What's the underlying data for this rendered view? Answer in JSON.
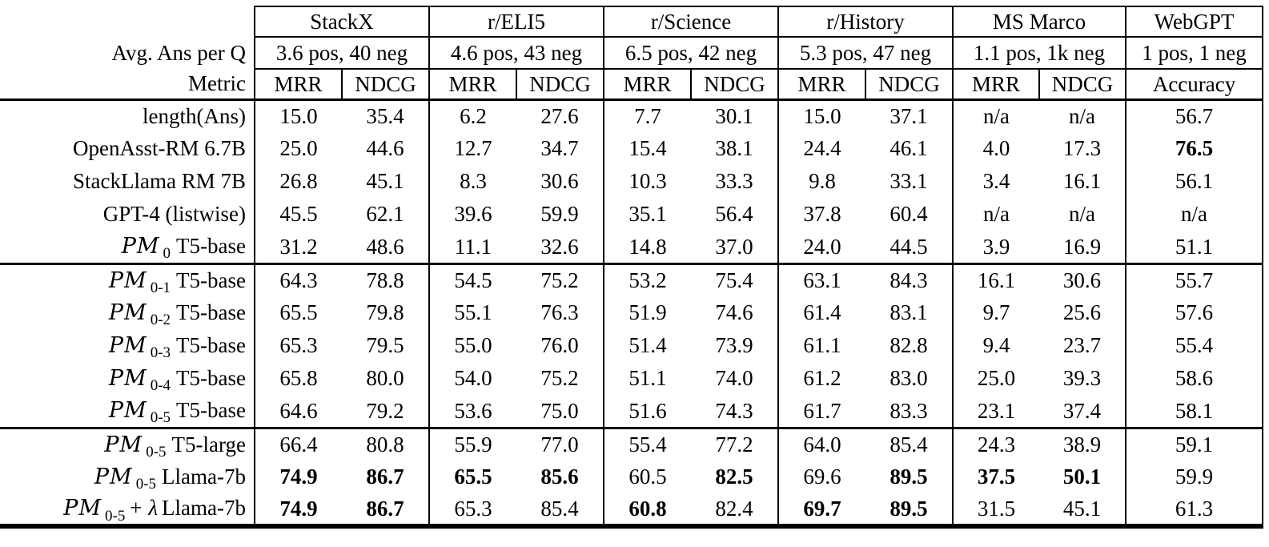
{
  "table": {
    "row_headers": {
      "avg": "Avg. Ans per Q",
      "metric": "Metric"
    },
    "groups": [
      {
        "name": "StackX",
        "avg": "3.6 pos, 40 neg",
        "metrics": [
          "MRR",
          "NDCG"
        ]
      },
      {
        "name": "r/ELI5",
        "avg": "4.6 pos, 43 neg",
        "metrics": [
          "MRR",
          "NDCG"
        ]
      },
      {
        "name": "r/Science",
        "avg": "6.5 pos, 42 neg",
        "metrics": [
          "MRR",
          "NDCG"
        ]
      },
      {
        "name": "r/History",
        "avg": "5.3 pos, 47 neg",
        "metrics": [
          "MRR",
          "NDCG"
        ]
      },
      {
        "name": "MS Marco",
        "avg": "1.1 pos, 1k neg",
        "metrics": [
          "MRR",
          "NDCG"
        ]
      },
      {
        "name": "WebGPT",
        "avg": "1 pos, 1 neg",
        "metrics": [
          "Accuracy"
        ]
      }
    ],
    "sections": [
      {
        "rows": [
          {
            "label": {
              "script": "",
              "sub": "",
              "mid": "",
              "rest": "length(Ans)"
            },
            "cells": [
              {
                "v": "15.0",
                "b": false
              },
              {
                "v": "35.4",
                "b": false
              },
              {
                "v": "6.2",
                "b": false
              },
              {
                "v": "27.6",
                "b": false
              },
              {
                "v": "7.7",
                "b": false
              },
              {
                "v": "30.1",
                "b": false
              },
              {
                "v": "15.0",
                "b": false
              },
              {
                "v": "37.1",
                "b": false
              },
              {
                "v": "n/a",
                "b": false
              },
              {
                "v": "n/a",
                "b": false
              },
              {
                "v": "56.7",
                "b": false
              }
            ]
          },
          {
            "label": {
              "script": "",
              "sub": "",
              "mid": "",
              "rest": "OpenAsst-RM 6.7B"
            },
            "cells": [
              {
                "v": "25.0",
                "b": false
              },
              {
                "v": "44.6",
                "b": false
              },
              {
                "v": "12.7",
                "b": false
              },
              {
                "v": "34.7",
                "b": false
              },
              {
                "v": "15.4",
                "b": false
              },
              {
                "v": "38.1",
                "b": false
              },
              {
                "v": "24.4",
                "b": false
              },
              {
                "v": "46.1",
                "b": false
              },
              {
                "v": "4.0",
                "b": false
              },
              {
                "v": "17.3",
                "b": false
              },
              {
                "v": "76.5",
                "b": true
              }
            ]
          },
          {
            "label": {
              "script": "",
              "sub": "",
              "mid": "",
              "rest": "StackLlama RM 7B"
            },
            "cells": [
              {
                "v": "26.8",
                "b": false
              },
              {
                "v": "45.1",
                "b": false
              },
              {
                "v": "8.3",
                "b": false
              },
              {
                "v": "30.6",
                "b": false
              },
              {
                "v": "10.3",
                "b": false
              },
              {
                "v": "33.3",
                "b": false
              },
              {
                "v": "9.8",
                "b": false
              },
              {
                "v": "33.1",
                "b": false
              },
              {
                "v": "3.4",
                "b": false
              },
              {
                "v": "16.1",
                "b": false
              },
              {
                "v": "56.1",
                "b": false
              }
            ]
          },
          {
            "label": {
              "script": "",
              "sub": "",
              "mid": "",
              "rest": "GPT-4 (listwise)"
            },
            "cells": [
              {
                "v": "45.5",
                "b": false
              },
              {
                "v": "62.1",
                "b": false
              },
              {
                "v": "39.6",
                "b": false
              },
              {
                "v": "59.9",
                "b": false
              },
              {
                "v": "35.1",
                "b": false
              },
              {
                "v": "56.4",
                "b": false
              },
              {
                "v": "37.8",
                "b": false
              },
              {
                "v": "60.4",
                "b": false
              },
              {
                "v": "n/a",
                "b": false
              },
              {
                "v": "n/a",
                "b": false
              },
              {
                "v": "n/a",
                "b": false
              }
            ]
          },
          {
            "label": {
              "script": "PM",
              "sub": "0",
              "mid": "",
              "rest": "T5-base"
            },
            "cells": [
              {
                "v": "31.2",
                "b": false
              },
              {
                "v": "48.6",
                "b": false
              },
              {
                "v": "11.1",
                "b": false
              },
              {
                "v": "32.6",
                "b": false
              },
              {
                "v": "14.8",
                "b": false
              },
              {
                "v": "37.0",
                "b": false
              },
              {
                "v": "24.0",
                "b": false
              },
              {
                "v": "44.5",
                "b": false
              },
              {
                "v": "3.9",
                "b": false
              },
              {
                "v": "16.9",
                "b": false
              },
              {
                "v": "51.1",
                "b": false
              }
            ]
          }
        ]
      },
      {
        "rows": [
          {
            "label": {
              "script": "PM",
              "sub": "0-1",
              "mid": "",
              "rest": "T5-base"
            },
            "cells": [
              {
                "v": "64.3",
                "b": false
              },
              {
                "v": "78.8",
                "b": false
              },
              {
                "v": "54.5",
                "b": false
              },
              {
                "v": "75.2",
                "b": false
              },
              {
                "v": "53.2",
                "b": false
              },
              {
                "v": "75.4",
                "b": false
              },
              {
                "v": "63.1",
                "b": false
              },
              {
                "v": "84.3",
                "b": false
              },
              {
                "v": "16.1",
                "b": false
              },
              {
                "v": "30.6",
                "b": false
              },
              {
                "v": "55.7",
                "b": false
              }
            ]
          },
          {
            "label": {
              "script": "PM",
              "sub": "0-2",
              "mid": "",
              "rest": "T5-base"
            },
            "cells": [
              {
                "v": "65.5",
                "b": false
              },
              {
                "v": "79.8",
                "b": false
              },
              {
                "v": "55.1",
                "b": false
              },
              {
                "v": "76.3",
                "b": false
              },
              {
                "v": "51.9",
                "b": false
              },
              {
                "v": "74.6",
                "b": false
              },
              {
                "v": "61.4",
                "b": false
              },
              {
                "v": "83.1",
                "b": false
              },
              {
                "v": "9.7",
                "b": false
              },
              {
                "v": "25.6",
                "b": false
              },
              {
                "v": "57.6",
                "b": false
              }
            ]
          },
          {
            "label": {
              "script": "PM",
              "sub": "0-3",
              "mid": "",
              "rest": "T5-base"
            },
            "cells": [
              {
                "v": "65.3",
                "b": false
              },
              {
                "v": "79.5",
                "b": false
              },
              {
                "v": "55.0",
                "b": false
              },
              {
                "v": "76.0",
                "b": false
              },
              {
                "v": "51.4",
                "b": false
              },
              {
                "v": "73.9",
                "b": false
              },
              {
                "v": "61.1",
                "b": false
              },
              {
                "v": "82.8",
                "b": false
              },
              {
                "v": "9.4",
                "b": false
              },
              {
                "v": "23.7",
                "b": false
              },
              {
                "v": "55.4",
                "b": false
              }
            ]
          },
          {
            "label": {
              "script": "PM",
              "sub": "0-4",
              "mid": "",
              "rest": "T5-base"
            },
            "cells": [
              {
                "v": "65.8",
                "b": false
              },
              {
                "v": "80.0",
                "b": false
              },
              {
                "v": "54.0",
                "b": false
              },
              {
                "v": "75.2",
                "b": false
              },
              {
                "v": "51.1",
                "b": false
              },
              {
                "v": "74.0",
                "b": false
              },
              {
                "v": "61.2",
                "b": false
              },
              {
                "v": "83.0",
                "b": false
              },
              {
                "v": "25.0",
                "b": false
              },
              {
                "v": "39.3",
                "b": false
              },
              {
                "v": "58.6",
                "b": false
              }
            ]
          },
          {
            "label": {
              "script": "PM",
              "sub": "0-5",
              "mid": "",
              "rest": "T5-base"
            },
            "cells": [
              {
                "v": "64.6",
                "b": false
              },
              {
                "v": "79.2",
                "b": false
              },
              {
                "v": "53.6",
                "b": false
              },
              {
                "v": "75.0",
                "b": false
              },
              {
                "v": "51.6",
                "b": false
              },
              {
                "v": "74.3",
                "b": false
              },
              {
                "v": "61.7",
                "b": false
              },
              {
                "v": "83.3",
                "b": false
              },
              {
                "v": "23.1",
                "b": false
              },
              {
                "v": "37.4",
                "b": false
              },
              {
                "v": "58.1",
                "b": false
              }
            ]
          }
        ]
      },
      {
        "rows": [
          {
            "label": {
              "script": "PM",
              "sub": "0-5",
              "mid": "",
              "rest": "T5-large"
            },
            "cells": [
              {
                "v": "66.4",
                "b": false
              },
              {
                "v": "80.8",
                "b": false
              },
              {
                "v": "55.9",
                "b": false
              },
              {
                "v": "77.0",
                "b": false
              },
              {
                "v": "55.4",
                "b": false
              },
              {
                "v": "77.2",
                "b": false
              },
              {
                "v": "64.0",
                "b": false
              },
              {
                "v": "85.4",
                "b": false
              },
              {
                "v": "24.3",
                "b": false
              },
              {
                "v": "38.9",
                "b": false
              },
              {
                "v": "59.1",
                "b": false
              }
            ]
          },
          {
            "label": {
              "script": "PM",
              "sub": "0-5",
              "mid": "",
              "rest": "Llama-7b"
            },
            "cells": [
              {
                "v": "74.9",
                "b": true
              },
              {
                "v": "86.7",
                "b": true
              },
              {
                "v": "65.5",
                "b": true
              },
              {
                "v": "85.6",
                "b": true
              },
              {
                "v": "60.5",
                "b": false
              },
              {
                "v": "82.5",
                "b": true
              },
              {
                "v": "69.6",
                "b": false
              },
              {
                "v": "89.5",
                "b": true
              },
              {
                "v": "37.5",
                "b": true
              },
              {
                "v": "50.1",
                "b": true
              },
              {
                "v": "59.9",
                "b": false
              }
            ]
          },
          {
            "label": {
              "script": "PM",
              "sub": "0-5",
              "mid": "+ λ",
              "rest": "Llama-7b"
            },
            "cells": [
              {
                "v": "74.9",
                "b": true
              },
              {
                "v": "86.7",
                "b": true
              },
              {
                "v": "65.3",
                "b": false
              },
              {
                "v": "85.4",
                "b": false
              },
              {
                "v": "60.8",
                "b": true
              },
              {
                "v": "82.4",
                "b": false
              },
              {
                "v": "69.7",
                "b": true
              },
              {
                "v": "89.5",
                "b": true
              },
              {
                "v": "31.5",
                "b": false
              },
              {
                "v": "45.1",
                "b": false
              },
              {
                "v": "61.3",
                "b": false
              }
            ]
          }
        ]
      }
    ]
  }
}
